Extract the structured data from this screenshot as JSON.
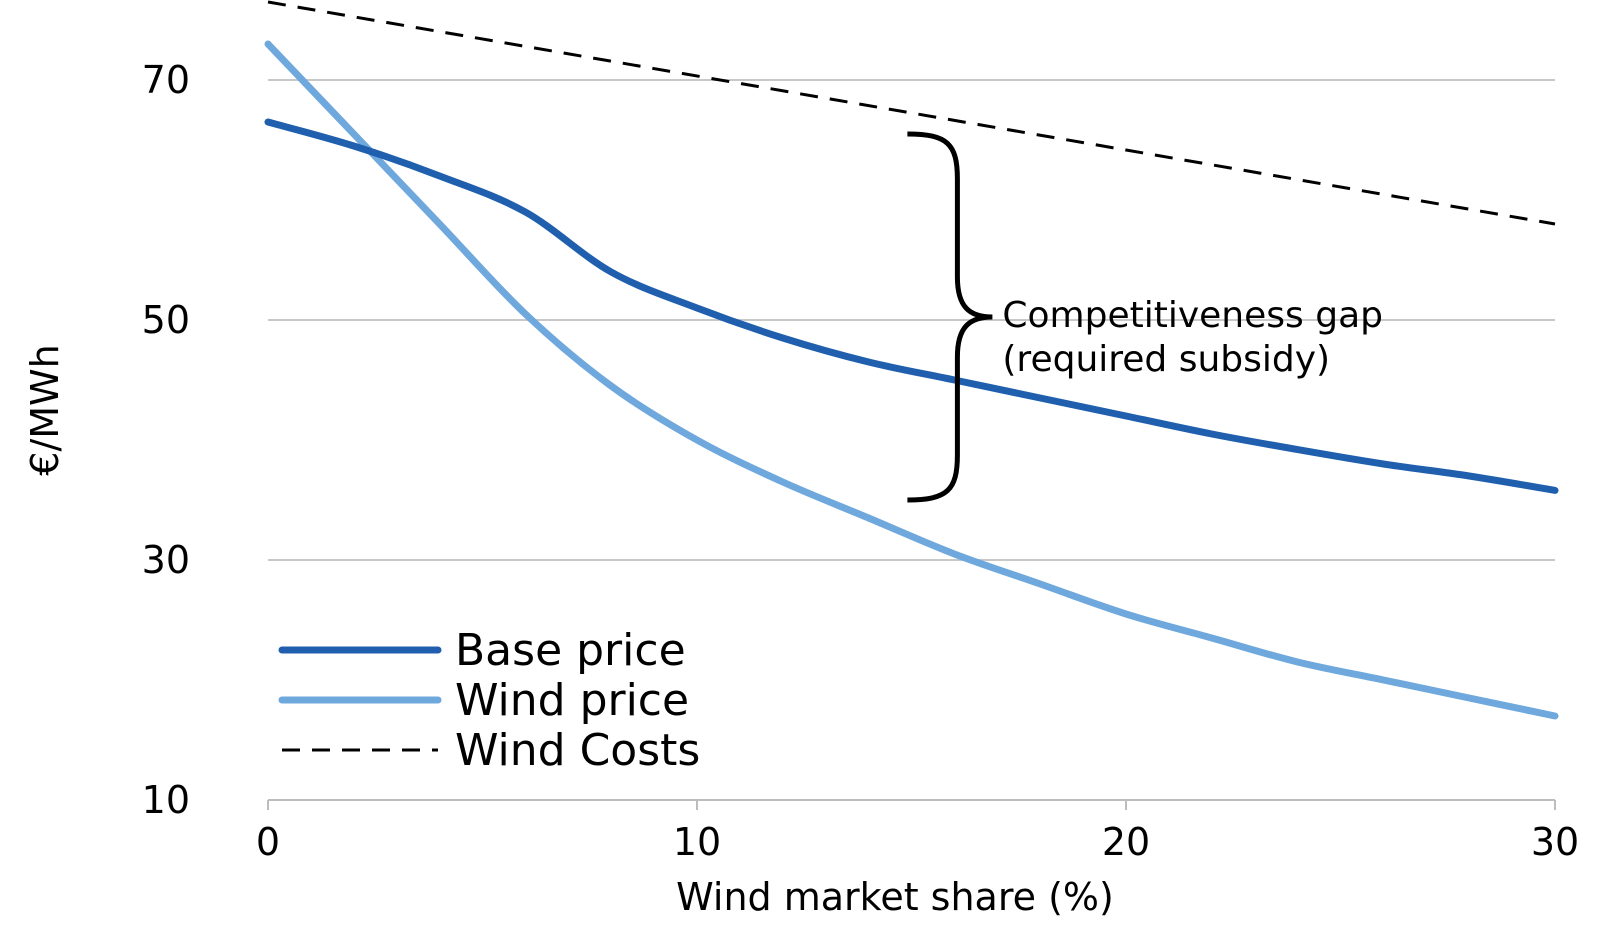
{
  "chart_data": {
    "type": "line",
    "xlabel": "Wind market share (%)",
    "ylabel": "€/MWh",
    "xlim": [
      0,
      30
    ],
    "ylim": [
      10,
      70
    ],
    "x_ticks": [
      0,
      10,
      20,
      30
    ],
    "y_ticks": [
      10,
      30,
      50,
      70
    ],
    "grid": "horizontal",
    "legend_position": "bottom-left",
    "series": [
      {
        "name": "Base price",
        "color": "#1f5fae",
        "style": "solid",
        "x": [
          0,
          2,
          4,
          6,
          8,
          10,
          12,
          14,
          16,
          18,
          20,
          22,
          24,
          26,
          28,
          30
        ],
        "y": [
          66.5,
          64.5,
          62,
          59,
          54,
          51,
          48.5,
          46.5,
          45,
          43.5,
          42,
          40.5,
          39.2,
          38,
          37,
          35.8
        ]
      },
      {
        "name": "Wind price",
        "color": "#6fa8dc",
        "style": "solid",
        "x": [
          0,
          2,
          4,
          6,
          8,
          10,
          12,
          14,
          16,
          18,
          20,
          22,
          24,
          26,
          28,
          30
        ],
        "y": [
          73,
          65.5,
          58,
          50.5,
          44.5,
          40,
          36.5,
          33.5,
          30.5,
          28,
          25.5,
          23.5,
          21.5,
          20,
          18.5,
          17
        ]
      },
      {
        "name": "Wind Costs",
        "color": "#000000",
        "style": "dashed",
        "x": [
          0,
          30
        ],
        "y": [
          76.5,
          58
        ]
      }
    ],
    "annotations": [
      {
        "type": "brace",
        "x": 16,
        "y_from": 35,
        "y_to": 65.5,
        "line1": "Competitiveness gap",
        "line2": "(required subsidy)"
      }
    ]
  }
}
